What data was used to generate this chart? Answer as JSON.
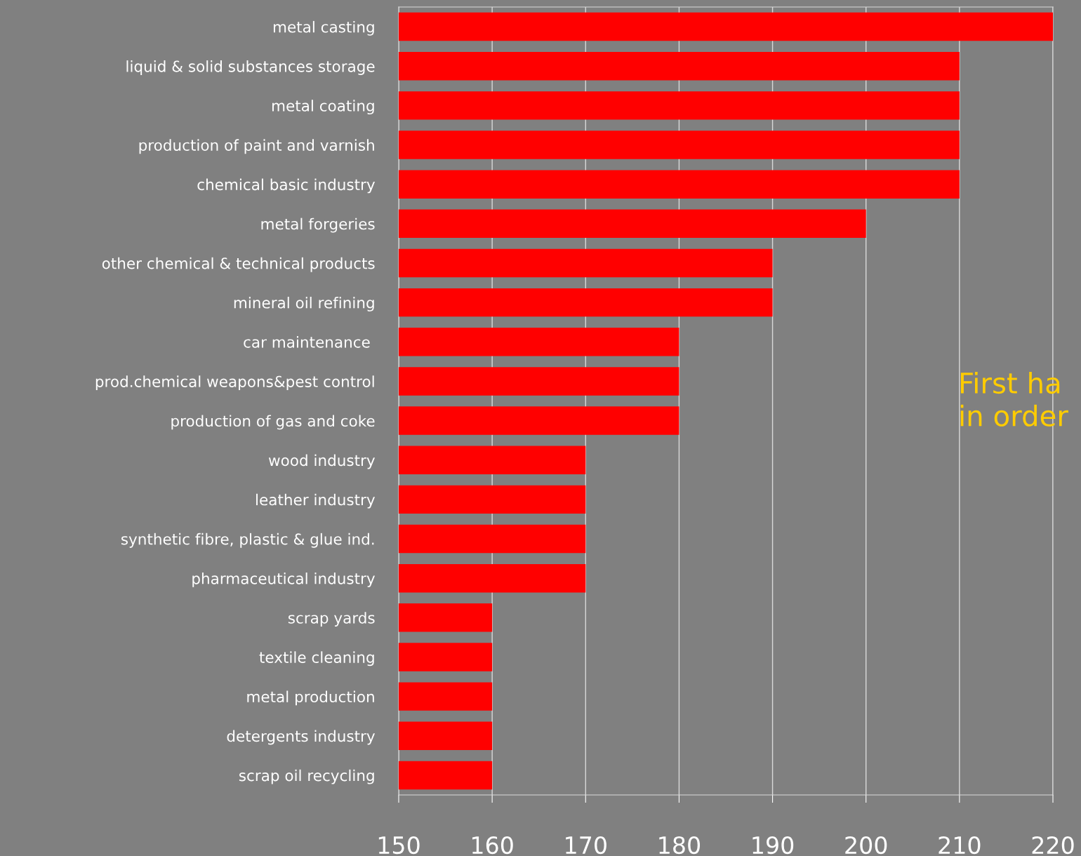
{
  "chart_data": {
    "type": "bar",
    "orientation": "horizontal",
    "categories": [
      "metal casting",
      "liquid & solid substances storage",
      "metal coating",
      "production of paint and varnish",
      "chemical basic industry",
      "metal forgeries",
      "other chemical & technical products",
      "mineral oil refining",
      "car maintenance ",
      "prod.chemical weapons&pest control",
      "production of gas and coke",
      "wood industry",
      "leather industry",
      "synthetic fibre, plastic & glue ind.",
      "pharmaceutical industry",
      "scrap yards",
      "textile cleaning",
      "metal production",
      "detergents industry",
      "scrap oil recycling"
    ],
    "values": [
      220,
      210,
      210,
      210,
      210,
      200,
      190,
      190,
      180,
      180,
      180,
      170,
      170,
      170,
      170,
      160,
      160,
      160,
      160,
      160
    ],
    "color": "#ff0000",
    "xlim": [
      150,
      220
    ],
    "xticks": [
      150,
      160,
      170,
      180,
      190,
      200,
      210,
      220
    ],
    "grid": "x",
    "annotations": [
      "First ha\nin order"
    ]
  }
}
